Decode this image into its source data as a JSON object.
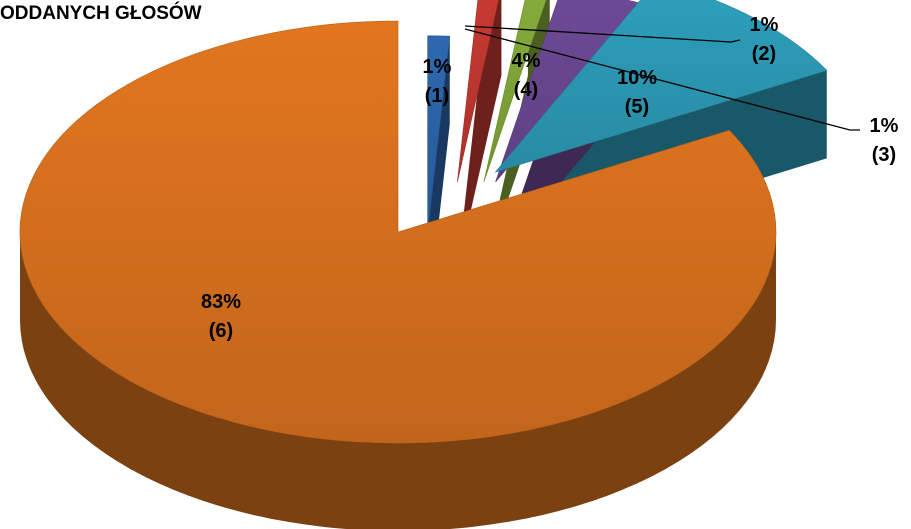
{
  "chart_data": {
    "type": "pie",
    "title": "ODDANYCH GŁOSÓW",
    "three_d": true,
    "exploded": true,
    "slices": [
      {
        "value": 1,
        "label": "1%",
        "id": "(1)",
        "color": "#2d68b0"
      },
      {
        "value": 1,
        "label": "1%",
        "id": "(2)",
        "color": "#c83a32"
      },
      {
        "value": 1,
        "label": "1%",
        "id": "(3)",
        "color": "#86ad3a"
      },
      {
        "value": 4,
        "label": "4%",
        "id": "(4)",
        "color": "#6e4a97"
      },
      {
        "value": 10,
        "label": "10%",
        "id": "(5)",
        "color": "#2ea0bd"
      },
      {
        "value": 83,
        "label": "83%",
        "id": "(6)",
        "color": "#e2761f"
      }
    ]
  }
}
